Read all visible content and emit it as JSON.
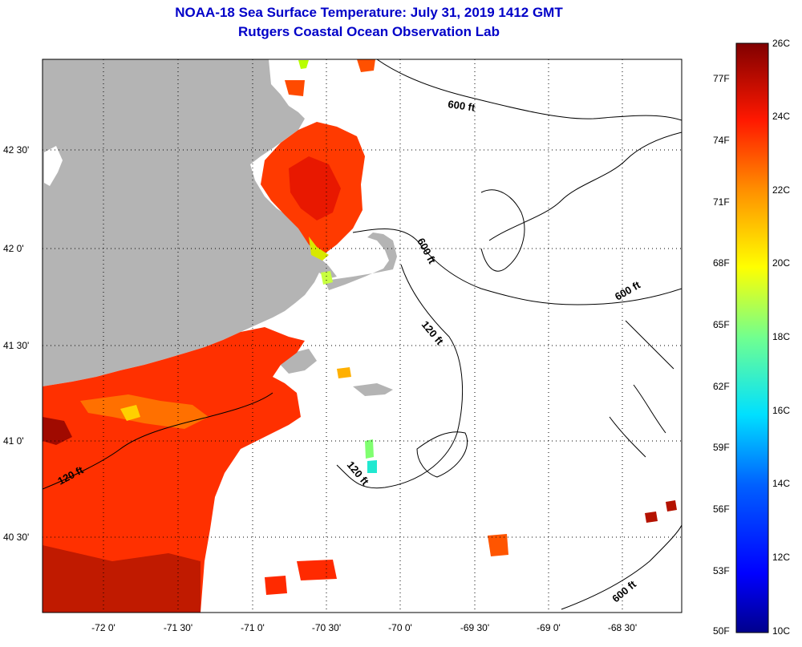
{
  "header": {
    "title": "NOAA-18 Sea Surface Temperature:  July 31, 2019 1412 GMT",
    "subtitle": "Rutgers Coastal Ocean Observation Lab"
  },
  "map": {
    "lat_labels": [
      "42 30'",
      "42 0'",
      "41 30'",
      "41 0'",
      "40 30'"
    ],
    "lon_labels": [
      "-72 0'",
      "-71 30'",
      "-71 0'",
      "-70 30'",
      "-70 0'",
      "-69 30'",
      "-69 0'",
      "-68 30'"
    ],
    "contour_labels": [
      "600 ft",
      "600 ft",
      "600 ft",
      "600 ft",
      "120 ft",
      "120 ft",
      "120 ft"
    ],
    "land_color": "#b4b4b4",
    "ocean_color": "#ffffff"
  },
  "colorbar": {
    "fahrenheit": [
      "77F",
      "74F",
      "71F",
      "68F",
      "65F",
      "62F",
      "59F",
      "56F",
      "53F",
      "50F"
    ],
    "celsius": [
      "26C",
      "24C",
      "22C",
      "20C",
      "18C",
      "16C",
      "14C",
      "12C",
      "10C"
    ],
    "range_c": [
      10,
      26
    ]
  }
}
